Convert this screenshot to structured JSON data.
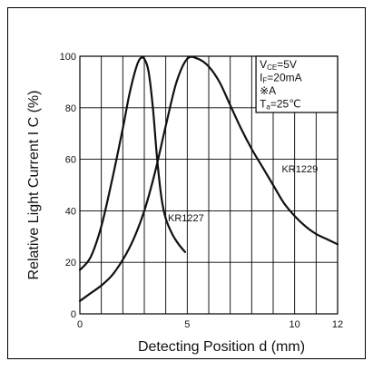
{
  "chart_data": {
    "type": "line",
    "xlabel": "Detecting Position d (mm)",
    "ylabel": "Relative Light Current I C (%)",
    "xlim": [
      0,
      12
    ],
    "ylim": [
      0,
      100
    ],
    "x_ticks": [
      0,
      5,
      10,
      12
    ],
    "y_ticks": [
      0,
      20,
      40,
      60,
      80,
      100
    ],
    "x_minor_step": 1,
    "y_minor_step": 20,
    "grid": true,
    "conditions": [
      {
        "main": "V",
        "sub": "CE",
        "rest": "=5V"
      },
      {
        "main": "I",
        "sub": "F",
        "rest": "=20mA"
      },
      {
        "main": "※A",
        "sub": "",
        "rest": ""
      },
      {
        "main": "T",
        "sub": "a",
        "rest": "=25℃"
      }
    ],
    "legend_position": "top-right",
    "series": [
      {
        "name": "KR1227",
        "label_at": [
          4.1,
          36
        ],
        "x": [
          0,
          0.5,
          1,
          1.5,
          2,
          2.3,
          2.6,
          2.8,
          3.0,
          3.2,
          3.4,
          3.6,
          3.8,
          4.0,
          4.3,
          4.6,
          4.9
        ],
        "y": [
          17,
          22,
          34,
          52,
          72,
          85,
          95,
          99,
          99,
          94,
          80,
          60,
          45,
          37,
          31,
          27,
          24
        ]
      },
      {
        "name": "KR1229",
        "label_at": [
          9.4,
          55
        ],
        "x": [
          0,
          0.5,
          1,
          1.5,
          2,
          2.5,
          3,
          3.5,
          4,
          4.5,
          5,
          5.5,
          6,
          6.5,
          7,
          7.5,
          8,
          8.5,
          9,
          9.5,
          10,
          10.5,
          11,
          11.5,
          12
        ],
        "y": [
          5,
          8,
          11,
          15,
          21,
          29,
          40,
          55,
          73,
          90,
          99,
          99,
          96,
          90,
          81,
          72,
          64,
          57,
          50,
          43,
          38,
          34,
          31,
          29,
          27
        ]
      }
    ]
  }
}
